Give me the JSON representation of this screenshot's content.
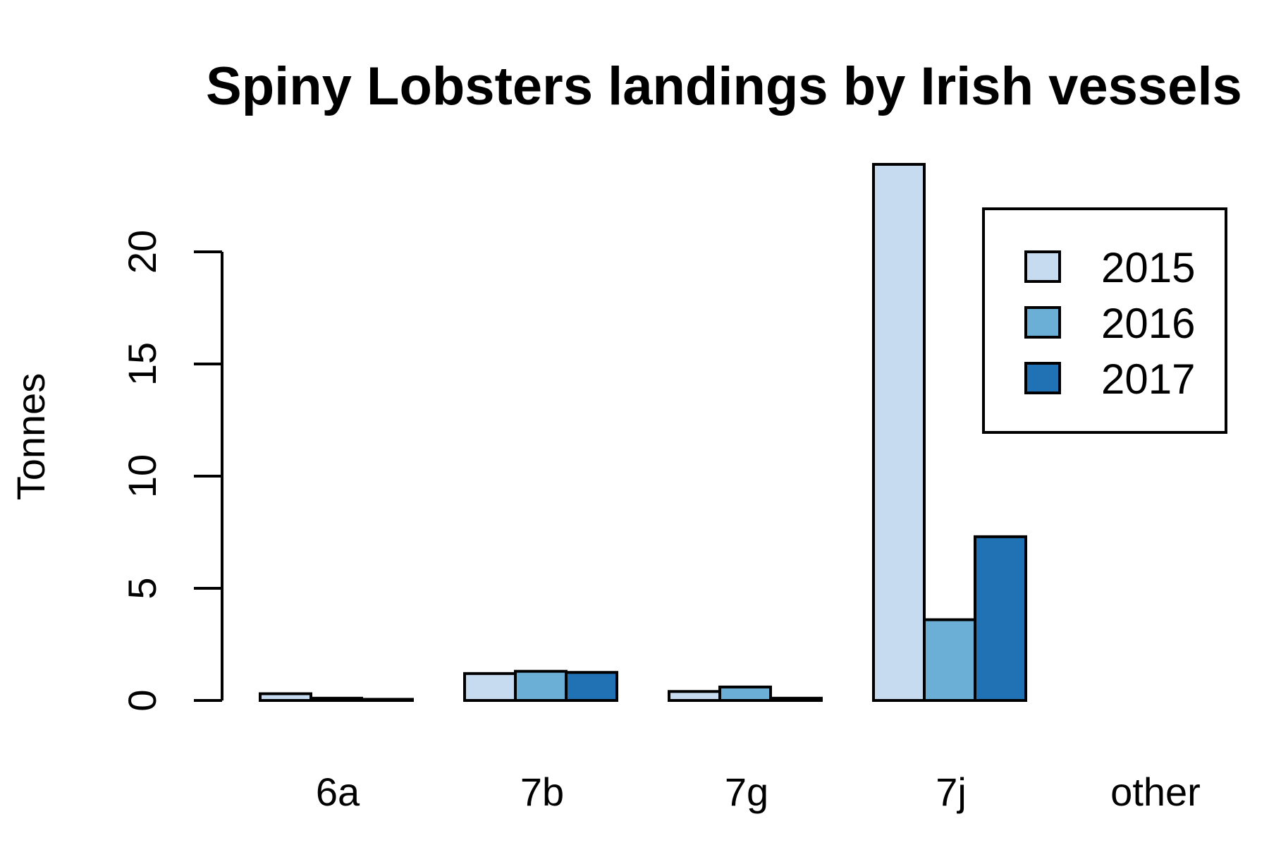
{
  "chart_data": {
    "type": "bar",
    "title": "Spiny Lobsters landings by Irish vessels",
    "xlabel": "",
    "ylabel": "Tonnes",
    "categories": [
      "6a",
      "7b",
      "7g",
      "7j",
      "other"
    ],
    "series": [
      {
        "name": "2015",
        "color": "#c6dbef",
        "values": [
          0.3,
          1.2,
          0.4,
          23.9,
          0.0
        ]
      },
      {
        "name": "2016",
        "color": "#6baed6",
        "values": [
          0.1,
          1.3,
          0.6,
          3.6,
          0.0
        ]
      },
      {
        "name": "2017",
        "color": "#2171b5",
        "values": [
          0.05,
          1.25,
          0.1,
          7.3,
          0.0
        ]
      }
    ],
    "yticks": [
      0,
      5,
      10,
      15,
      20
    ],
    "ylim": [
      0,
      24
    ],
    "grid": false,
    "legend_position": "top-right"
  }
}
